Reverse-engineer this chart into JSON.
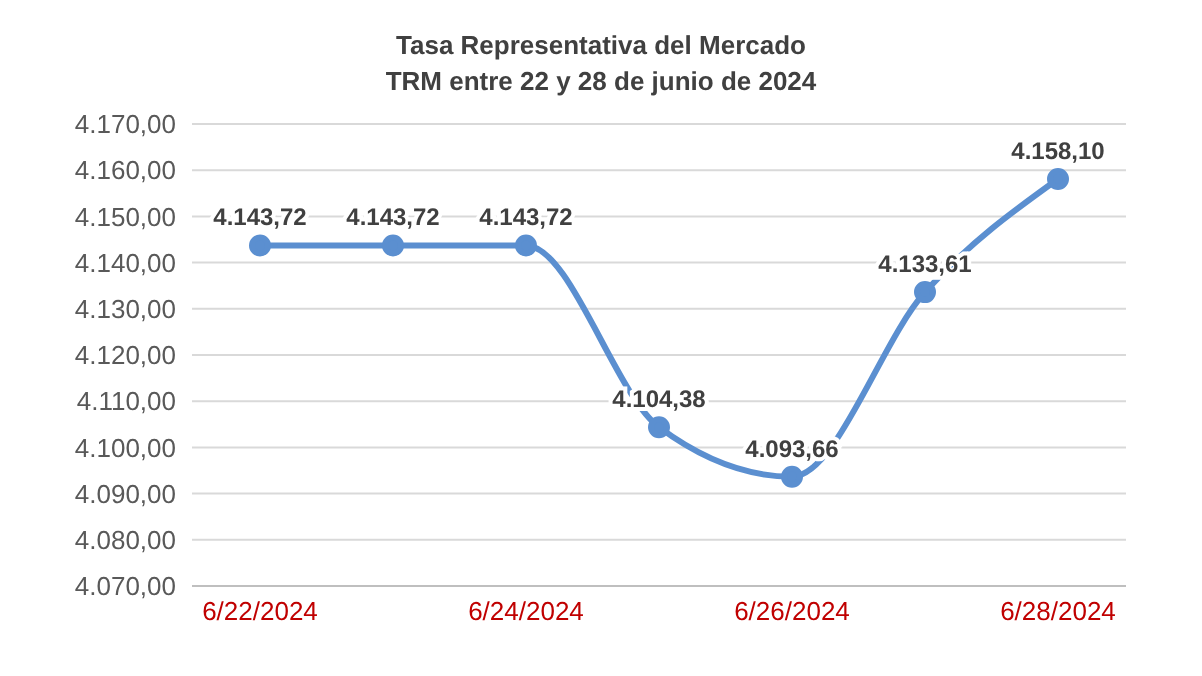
{
  "chart_data": {
    "type": "line",
    "title": "Tasa Representativa del Mercado",
    "subtitle": "TRM entre 22 y 28 de junio de 2024",
    "categories": [
      "6/22/2024",
      null,
      "6/24/2024",
      null,
      "6/26/2024",
      null,
      "6/28/2024"
    ],
    "series": [
      {
        "color": "#5b8fd0",
        "values": [
          4143.72,
          4143.72,
          4143.72,
          4104.38,
          4093.66,
          4133.61,
          4158.1
        ],
        "value_labels": [
          "4.143,72",
          "4.143,72",
          "4.143,72",
          "4.104,38",
          "4.093,66",
          "4.133,61",
          "4.158,10"
        ]
      }
    ],
    "ylim": [
      4070,
      4170
    ],
    "yticks": [
      {
        "value": 4070,
        "label": "4.070,00"
      },
      {
        "value": 4080,
        "label": "4.080,00"
      },
      {
        "value": 4090,
        "label": "4.090,00"
      },
      {
        "value": 4100,
        "label": "4.100,00"
      },
      {
        "value": 4110,
        "label": "4.110,00"
      },
      {
        "value": 4120,
        "label": "4.120,00"
      },
      {
        "value": 4130,
        "label": "4.130,00"
      },
      {
        "value": 4140,
        "label": "4.140,00"
      },
      {
        "value": 4150,
        "label": "4.150,00"
      },
      {
        "value": 4160,
        "label": "4.160,00"
      },
      {
        "value": 4170,
        "label": "4.170,00"
      }
    ],
    "grid": "y",
    "marker": "circle",
    "line_style": "solid",
    "legend": false
  }
}
